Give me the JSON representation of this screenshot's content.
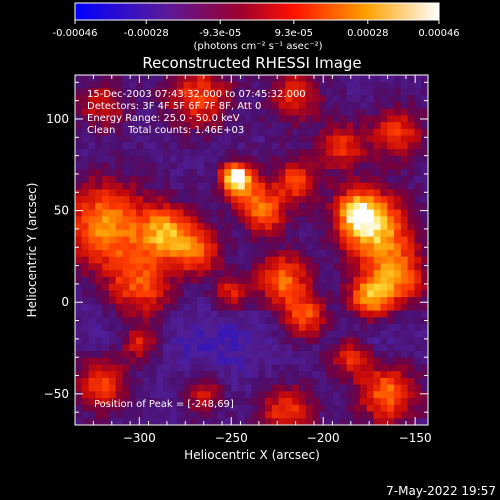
{
  "chart_data": {
    "type": "heatmap",
    "title": "Reconstructed RHESSI Image",
    "xlabel": "Heliocentric X (arcsec)",
    "ylabel": "Heliocentric Y (arcsec)",
    "xlim": [
      -335,
      -143
    ],
    "ylim": [
      -67,
      124
    ],
    "xticks": [
      -300,
      -250,
      -200,
      -150
    ],
    "yticks": [
      -50,
      0,
      50,
      100
    ],
    "colorbar": {
      "min": -0.00046,
      "max": 0.00046,
      "ticks": [
        -0.00046,
        -0.00028,
        -9.3e-05,
        9.3e-05,
        0.00028,
        0.00046
      ],
      "tick_labels": [
        "-0.00046",
        "-0.00028",
        "-9.3e-05",
        "9.3e-05",
        "0.00028",
        "0.00046"
      ],
      "units_label": "(photons cm⁻² s⁻¹ asec⁻²)"
    },
    "annotations": [
      "15-Dec-2003 07:43:32.000 to 07:45:32.000",
      "Detectors: 3F 4F 5F 6F 7F 8F, Att 0",
      "Energy Range: 25.0 - 50.0 keV",
      "Clean    Total counts: 1.46E+03"
    ],
    "peak_label": "Position of Peak = [-248,69]",
    "peak": [
      -248,
      69
    ],
    "grid": false,
    "colormap": "rhessi-blue-purple-red-yellow-white"
  },
  "footer": {
    "date": "7-May-2022 19:57"
  }
}
